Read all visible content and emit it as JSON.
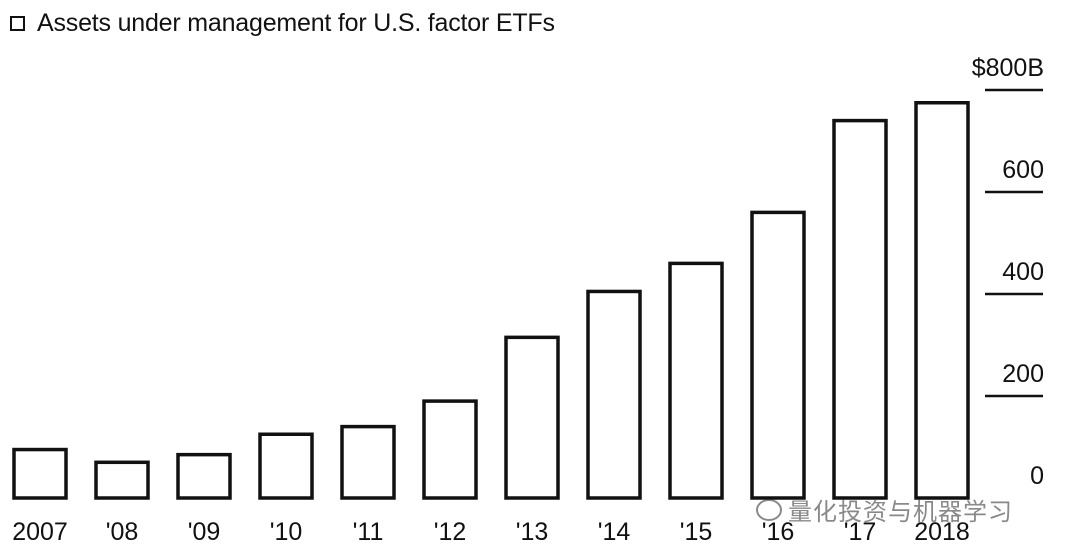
{
  "legend": {
    "label": "Assets under management for U.S. factor ETFs"
  },
  "watermark": {
    "text": "量化投资与机器学习"
  },
  "chart_data": {
    "type": "bar",
    "title": "",
    "categories": [
      "2007",
      "'08",
      "'09",
      "'10",
      "'11",
      "'12",
      "'13",
      "'14",
      "'15",
      "'16",
      "'17",
      "2018"
    ],
    "series": [
      {
        "name": "Assets under management for U.S. factor ETFs",
        "values": [
          95,
          70,
          85,
          125,
          140,
          190,
          315,
          405,
          460,
          560,
          740,
          775
        ]
      }
    ],
    "ylim": [
      0,
      800
    ],
    "yticks": [
      0,
      200,
      400,
      600,
      800
    ],
    "ytick_labels": [
      "0",
      "200",
      "400",
      "600",
      "$800B"
    ],
    "y_axis_side": "right",
    "grid": false,
    "legend_position": "top-left",
    "colors": {
      "bar_fill": "#ffffff",
      "bar_stroke": "#111111"
    }
  }
}
